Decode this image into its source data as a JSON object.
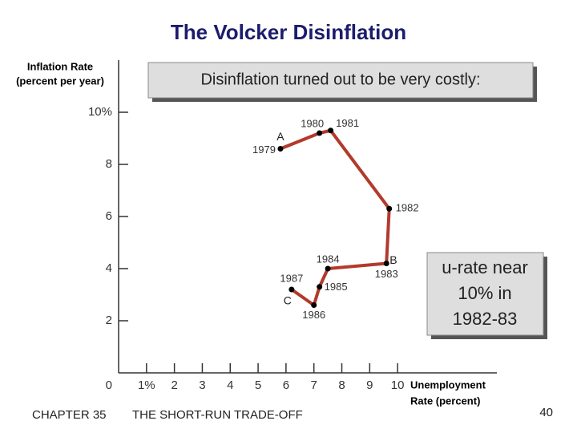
{
  "chart_data": {
    "type": "line",
    "title": "The Volcker Disinflation",
    "y_label": [
      "Inflation Rate",
      "(percent per year)"
    ],
    "x_label": [
      "Unemployment",
      "Rate (percent)"
    ],
    "x": [
      5.8,
      7.2,
      7.6,
      9.7,
      9.6,
      7.5,
      7.2,
      7.0,
      6.2
    ],
    "values": [
      8.6,
      9.2,
      9.3,
      6.3,
      4.2,
      4.0,
      3.3,
      2.6,
      3.2
    ],
    "point_labels": [
      "1979",
      "1980",
      "1981",
      "1982",
      "1983",
      "1984",
      "1985",
      "1986",
      "1987"
    ],
    "point_letters": [
      "A",
      null,
      null,
      null,
      "B",
      null,
      null,
      null,
      "C"
    ],
    "color": "#b23a2c",
    "marker_color": "#000000",
    "xlim": [
      0,
      13.5
    ],
    "ylim": [
      0,
      12
    ],
    "xticks": [
      {
        "value": 1,
        "label": "1%"
      },
      2,
      3,
      4,
      5,
      6,
      7,
      8,
      9,
      10
    ],
    "yticks": [
      0,
      2,
      4,
      6,
      8,
      {
        "value": 10,
        "label": "10%"
      }
    ],
    "annotations": [
      [
        "Disinflation turned out to be very costly:"
      ],
      [
        "u-rate near",
        "10% in",
        "1982-83"
      ]
    ]
  },
  "footer": {
    "chapter": "CHAPTER 35",
    "section": "THE SHORT-RUN TRADE-OFF",
    "page": "40"
  }
}
